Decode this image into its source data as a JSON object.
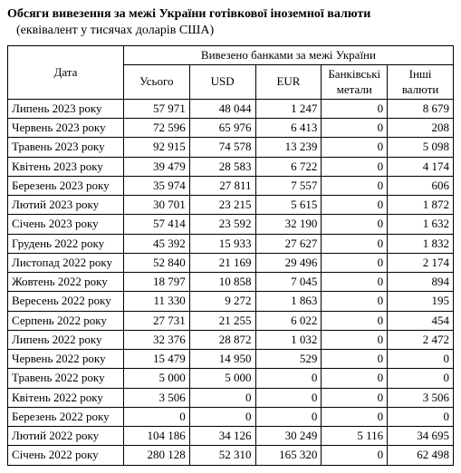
{
  "title": "Обсяги вивезення за межі України готівкової іноземної валюти",
  "subtitle": "(еквівалент у тисячах доларів США)",
  "table": {
    "header_top": "Вивезено банками за межі України",
    "columns": [
      "Дата",
      "Усього",
      "USD",
      "EUR",
      "Банківські метали",
      "Інші валюти"
    ],
    "rows": [
      [
        "Липень 2023 року",
        "57 971",
        "48 044",
        "1 247",
        "0",
        "8 679"
      ],
      [
        "Червень 2023 року",
        "72 596",
        "65 976",
        "6 413",
        "0",
        "208"
      ],
      [
        "Травень 2023 року",
        "92 915",
        "74 578",
        "13 239",
        "0",
        "5 098"
      ],
      [
        "Квітень 2023 року",
        "39 479",
        "28 583",
        "6 722",
        "0",
        "4 174"
      ],
      [
        "Березень 2023 року",
        "35 974",
        "27 811",
        "7 557",
        "0",
        "606"
      ],
      [
        "Лютий 2023 року",
        "30 701",
        "23 215",
        "5 615",
        "0",
        "1 872"
      ],
      [
        "Січень 2023 року",
        "57 414",
        "23 592",
        "32 190",
        "0",
        "1 632"
      ],
      [
        "Грудень 2022 року",
        "45 392",
        "15 933",
        "27 627",
        "0",
        "1 832"
      ],
      [
        "Листопад 2022 року",
        "52 840",
        "21 169",
        "29 496",
        "0",
        "2 174"
      ],
      [
        "Жовтень 2022 року",
        "18 797",
        "10 858",
        "7 045",
        "0",
        "894"
      ],
      [
        "Вересень 2022 року",
        "11 330",
        "9 272",
        "1 863",
        "0",
        "195"
      ],
      [
        "Серпень 2022 року",
        "27 731",
        "21 255",
        "6 022",
        "0",
        "454"
      ],
      [
        "Липень 2022 року",
        "32 376",
        "28 872",
        "1 032",
        "0",
        "2 472"
      ],
      [
        "Червень 2022 року",
        "15 479",
        "14 950",
        "529",
        "0",
        "0"
      ],
      [
        "Травень 2022 року",
        "5 000",
        "5 000",
        "0",
        "0",
        "0"
      ],
      [
        "Квітень 2022 року",
        "3 506",
        "0",
        "0",
        "0",
        "3 506"
      ],
      [
        "Березень 2022 року",
        "0",
        "0",
        "0",
        "0",
        "0"
      ],
      [
        "Лютий 2022 року",
        "104 186",
        "34 126",
        "30 249",
        "5 116",
        "34 695"
      ],
      [
        "Січень 2022 року",
        "280 128",
        "52 310",
        "165 320",
        "0",
        "62 498"
      ]
    ]
  }
}
